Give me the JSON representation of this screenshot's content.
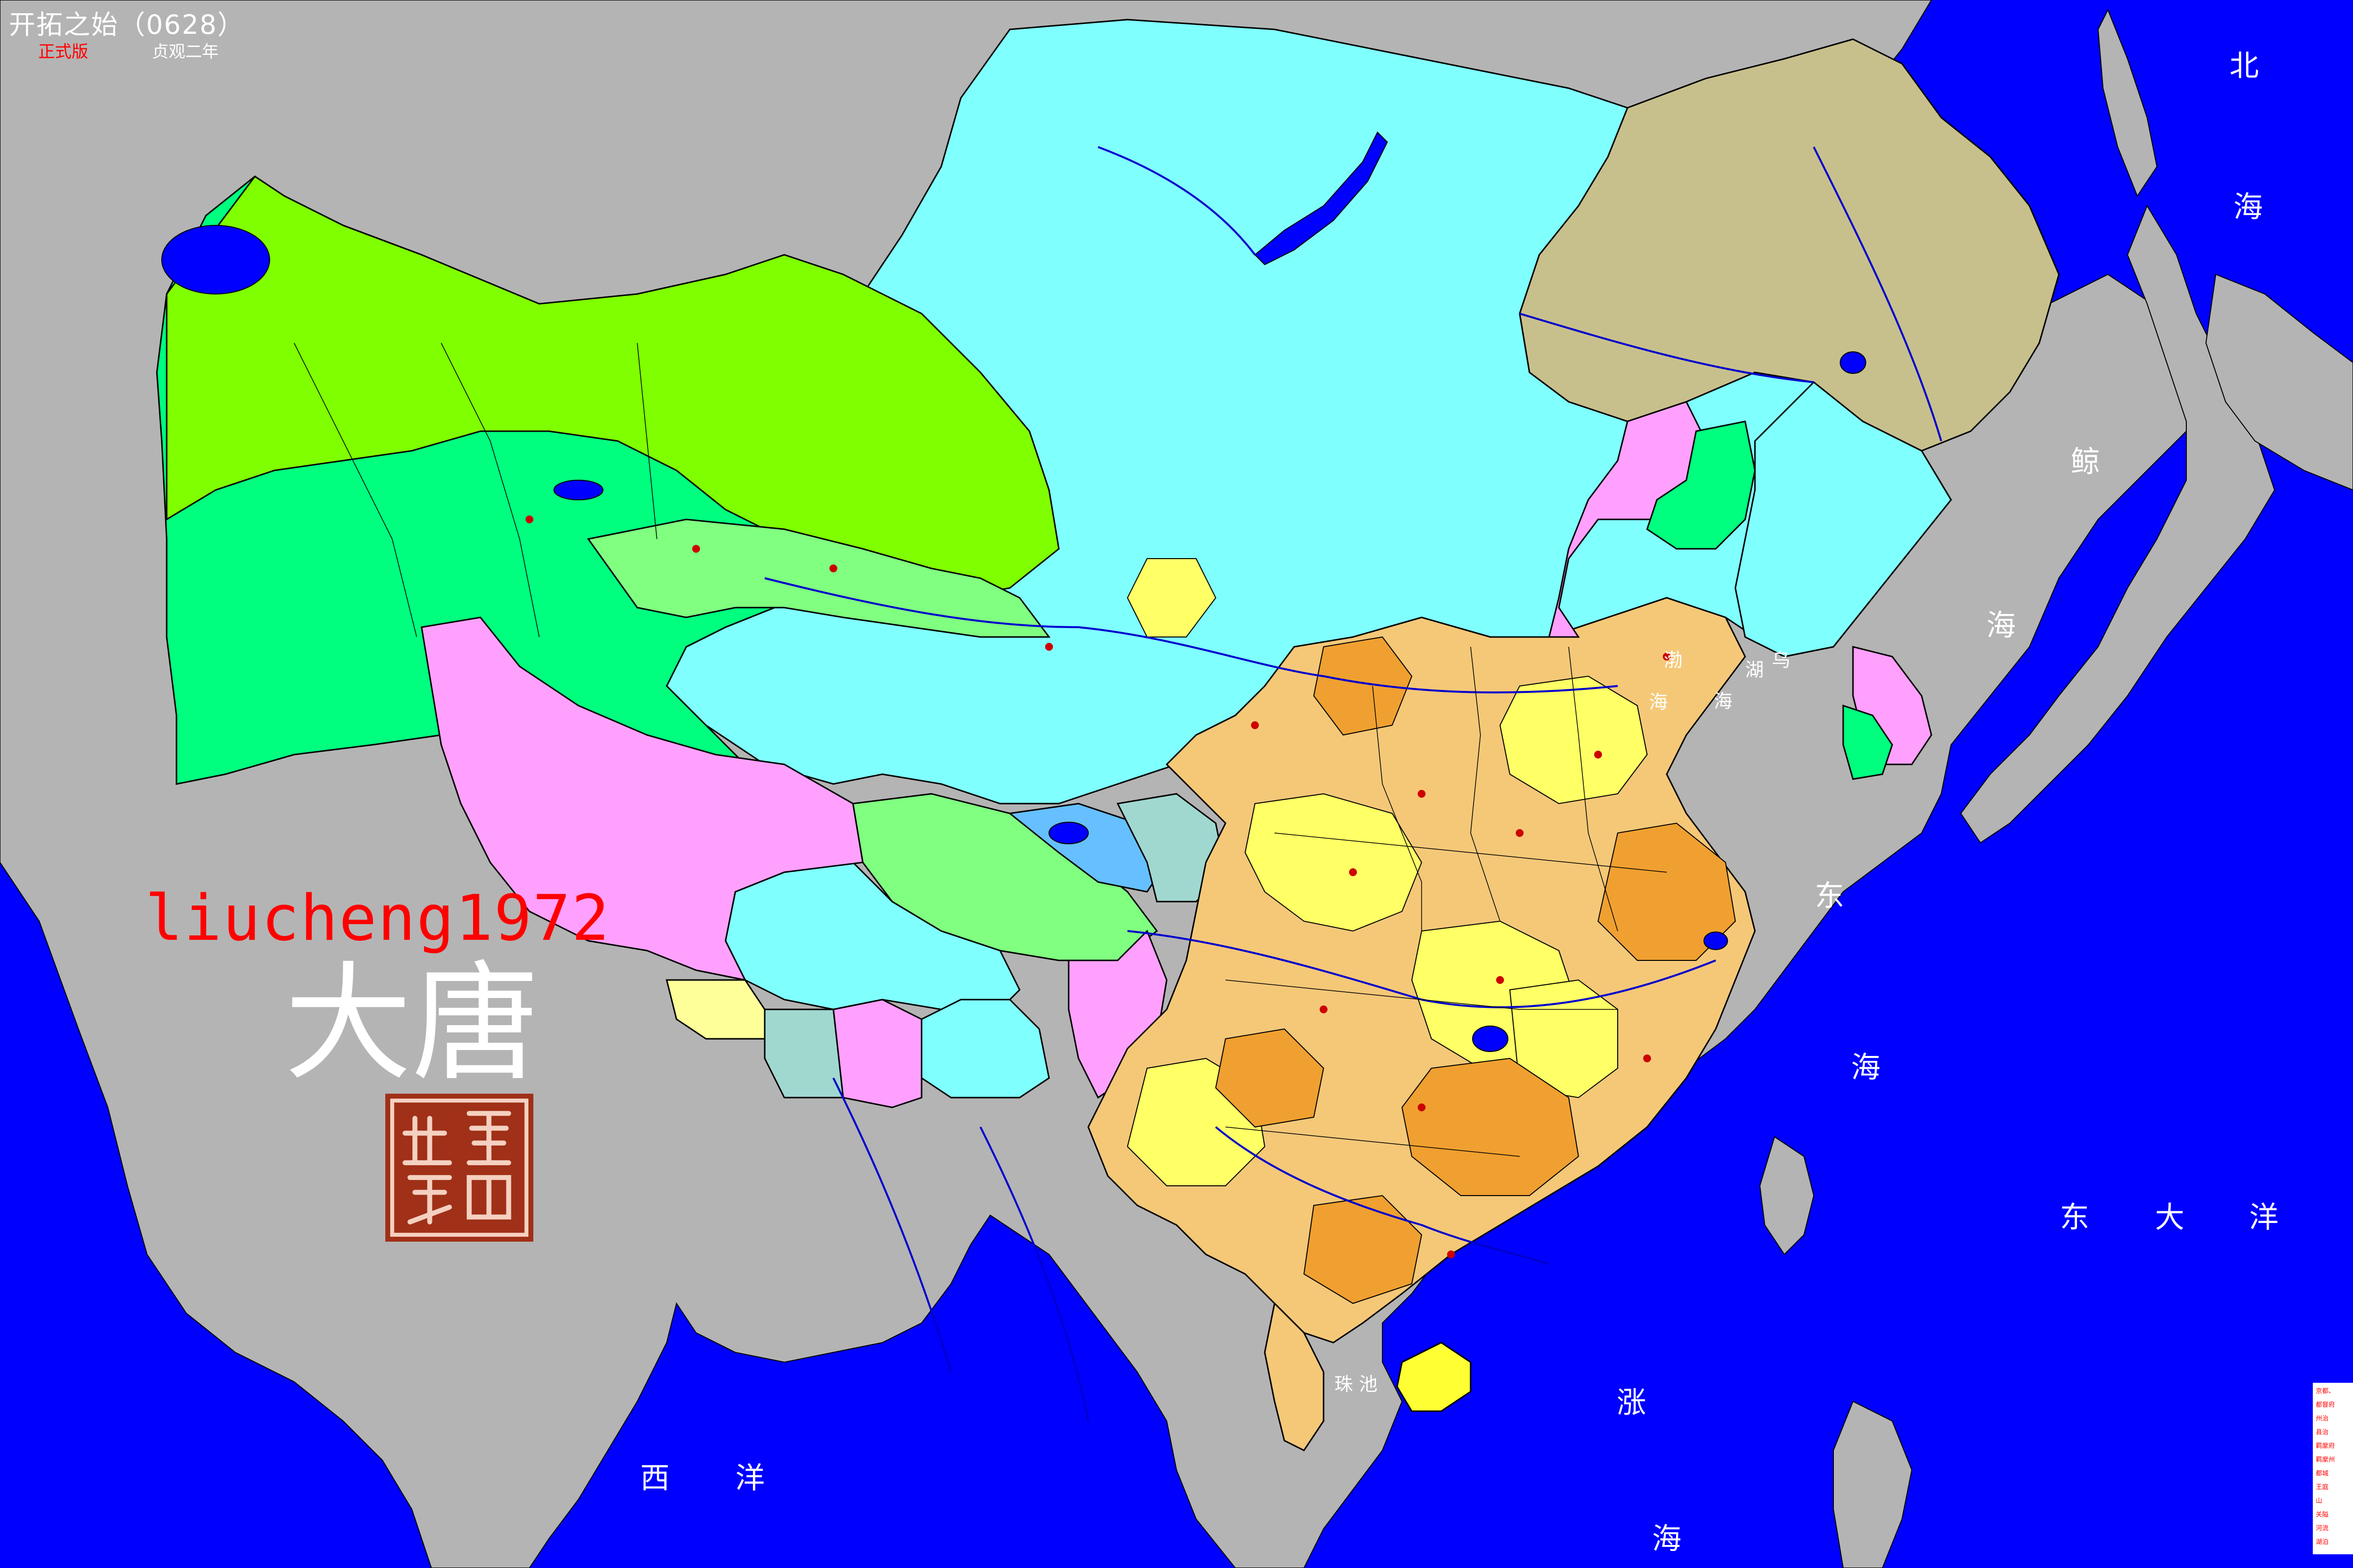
{
  "header": {
    "title": "开拓之始（0628）",
    "edition": "正式版",
    "era": "贞观二年"
  },
  "watermark": {
    "author": "liucheng1972",
    "dynasty": "大唐"
  },
  "sea_labels": [
    {
      "id": "bei",
      "text": "北"
    },
    {
      "id": "hai-north",
      "text": "海"
    },
    {
      "id": "jing",
      "text": "鲸"
    },
    {
      "id": "hai-jing",
      "text": "海"
    },
    {
      "id": "bohai-1",
      "text": "渤"
    },
    {
      "id": "bohai-2",
      "text": "海"
    },
    {
      "id": "wuhu-1",
      "text": "乌"
    },
    {
      "id": "wuhu-2",
      "text": "湖"
    },
    {
      "id": "wuhu-3",
      "text": "海"
    },
    {
      "id": "dong",
      "text": "东"
    },
    {
      "id": "donghai",
      "text": "海"
    },
    {
      "id": "dongdayang-1",
      "text": "东"
    },
    {
      "id": "dongdayang-2",
      "text": "大"
    },
    {
      "id": "dongdayang-3",
      "text": "洋"
    },
    {
      "id": "zhang",
      "text": "涨"
    },
    {
      "id": "zhanghai",
      "text": "海"
    },
    {
      "id": "zhuchi",
      "text": "珠 池"
    },
    {
      "id": "xi",
      "text": "西"
    },
    {
      "id": "yang",
      "text": "洋"
    }
  ],
  "legend": {
    "items": [
      "京都、",
      "都督府",
      "州治",
      "县治",
      "羁縻府",
      "羁縻州",
      "都城",
      "王庭",
      "山",
      "关隘",
      "河流",
      "湖泊"
    ]
  },
  "colors": {
    "sea": "#0000ff",
    "land_unclaimed": "#b4b4b4",
    "tang_core": "#f5c878",
    "tang_yellow": "#ffff66",
    "tang_orange": "#f0a030",
    "xueyantuo": "#80ffff",
    "xitujue_green": "#00ff7f",
    "xitujue_lime": "#7fff00",
    "pink": "#ffa0ff",
    "mohe_khaki": "#c8c08c",
    "seal_red": "#a03018"
  }
}
